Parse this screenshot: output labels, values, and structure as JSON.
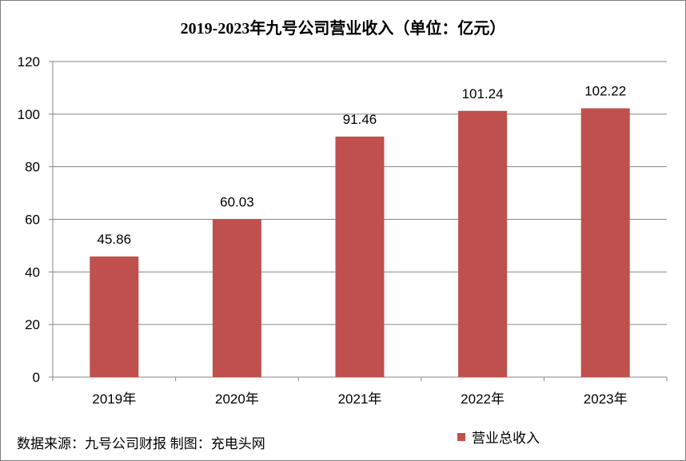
{
  "chart_data": {
    "type": "bar",
    "title": "2019-2023年九号公司营业收入（单位：亿元）",
    "categories": [
      "2019年",
      "2020年",
      "2021年",
      "2022年",
      "2023年"
    ],
    "series": [
      {
        "name": "营业总收入",
        "values": [
          45.86,
          60.03,
          91.46,
          101.24,
          102.22
        ],
        "color": "#c0504d"
      }
    ],
    "data_labels": [
      "45.86",
      "60.03",
      "91.46",
      "101.24",
      "102.22"
    ],
    "yticks": [
      0,
      20,
      40,
      60,
      80,
      100,
      120
    ],
    "ylim": [
      0,
      120
    ],
    "grid": true,
    "legend": "bottom-right",
    "xlabel": "",
    "ylabel": ""
  },
  "footer": {
    "source": "数据来源：九号公司财报 制图：充电头网"
  },
  "colors": {
    "bar": "#c0504d",
    "grid": "#868686",
    "axis": "#868686"
  }
}
